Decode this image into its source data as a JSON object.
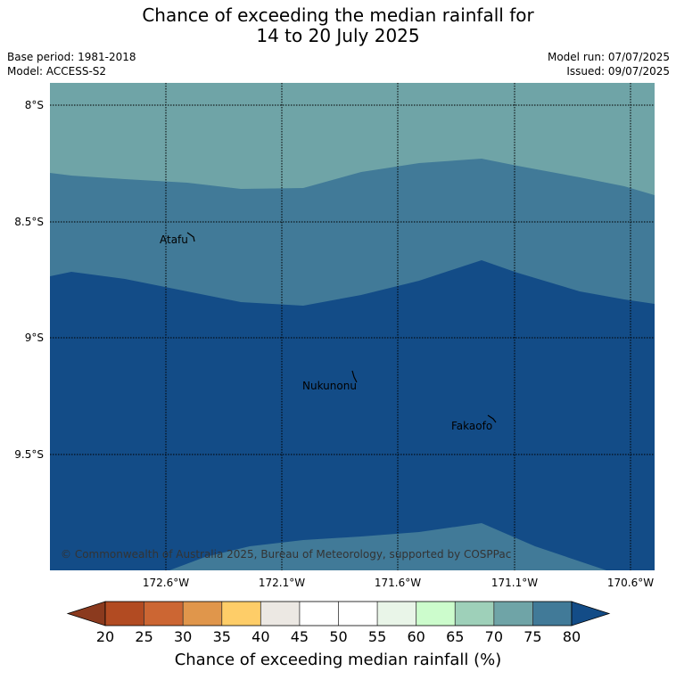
{
  "header": {
    "title_line1": "Chance of exceeding the median rainfall for",
    "title_line2": "14 to 20 July 2025",
    "base_period": "Base period: 1981-2018",
    "model": "Model: ACCESS-S2",
    "model_run": "Model run: 07/07/2025",
    "issued": "Issued: 09/07/2025"
  },
  "map": {
    "lon_labels": [
      "172.6°W",
      "172.1°W",
      "171.6°W",
      "171.1°W",
      "170.6°W"
    ],
    "lat_labels": [
      "8°S",
      "8.5°S",
      "9°S",
      "9.5°S"
    ],
    "places": [
      "Atafu",
      "Nukunonu",
      "Fakaofo"
    ],
    "copyright": "© Commonwealth of Australia 2025, Bureau of Meteorology, supported by COSPPac",
    "zone_colors": [
      "#6fa4a7",
      "#417a98",
      "#134c87"
    ]
  },
  "colorbar": {
    "ticks": [
      "20",
      "25",
      "30",
      "35",
      "40",
      "45",
      "50",
      "55",
      "60",
      "65",
      "70",
      "75",
      "80"
    ],
    "colors": [
      "#b24b22",
      "#cc6633",
      "#e0964b",
      "#fecd68",
      "#ece8e3",
      "#ffffff",
      "#ffffff",
      "#e9f5e8",
      "#ccfccc",
      "#9ed0b9",
      "#6fa4a7",
      "#417a98"
    ],
    "under_color": "#8b3a1e",
    "over_color": "#134c87",
    "label": "Chance of exceeding median rainfall (%)"
  }
}
